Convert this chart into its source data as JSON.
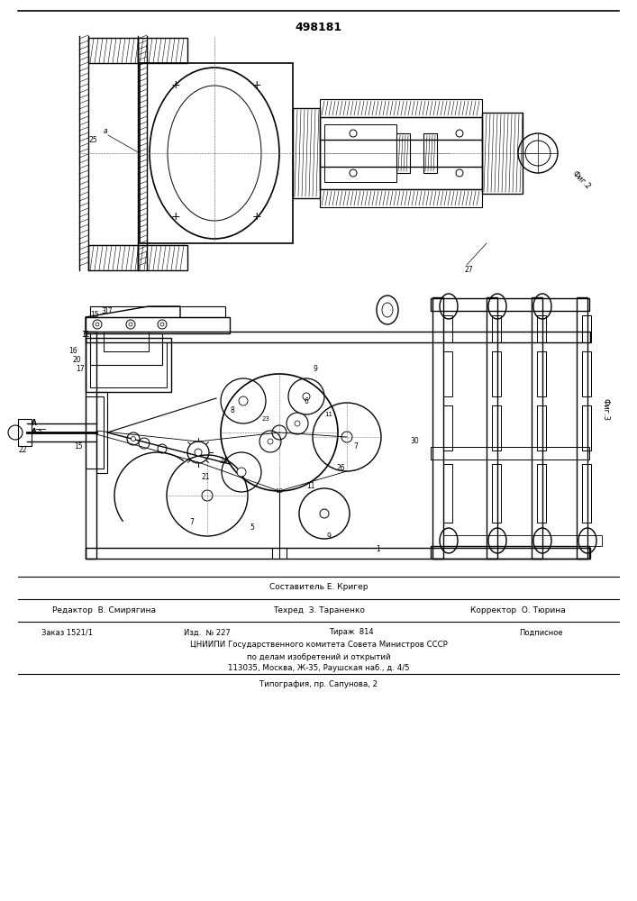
{
  "patent_number": "498181",
  "composer": "Составитель Е. Кригер",
  "editor": "Редактор  В. Смирягина",
  "techred": "Техред  З. Тараненко",
  "corrector": "Корректор  О. Тюрина",
  "order": "Заказ 1521/1",
  "edition": "Изд.  № 227",
  "circulation": "Тираж  814",
  "subscription": "Подписное",
  "institute": "ЦНИИПИ Государственного комитета Совета Министров СССР",
  "institute2": "по делам изобретений и открытий",
  "address": "113035, Москва, Ж-35, Раушская наб., д. 4/5",
  "printer": "Типография, пр. Сапунова, 2",
  "fig2_label": "Фиг.2",
  "fig3_label": "Фиг.3",
  "bg_color": "#ffffff",
  "line_color": "#000000"
}
